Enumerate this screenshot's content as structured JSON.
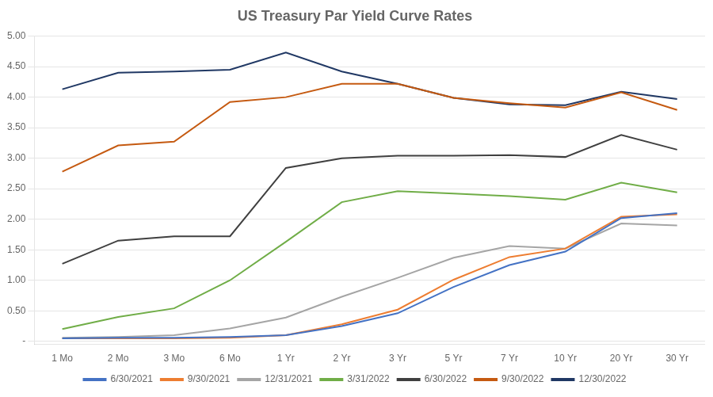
{
  "chart_data": {
    "type": "line",
    "title": "US Treasury Par Yield Curve Rates",
    "categories": [
      "1 Mo",
      "2 Mo",
      "3 Mo",
      "6 Mo",
      "1 Yr",
      "2 Yr",
      "3 Yr",
      "5 Yr",
      "7 Yr",
      "10 Yr",
      "20 Yr",
      "30 Yr"
    ],
    "series": [
      {
        "name": "6/30/2021",
        "color": "#4472C4",
        "values": [
          0.05,
          0.06,
          0.06,
          0.07,
          0.1,
          0.25,
          0.46,
          0.89,
          1.25,
          1.47,
          2.02,
          2.1
        ]
      },
      {
        "name": "9/30/2021",
        "color": "#ED7D31",
        "values": [
          0.05,
          0.05,
          0.05,
          0.06,
          0.1,
          0.28,
          0.52,
          1.01,
          1.38,
          1.52,
          2.04,
          2.08
        ]
      },
      {
        "name": "12/31/2021",
        "color": "#A5A5A5",
        "values": [
          0.06,
          0.07,
          0.1,
          0.21,
          0.39,
          0.73,
          1.04,
          1.37,
          1.56,
          1.52,
          1.93,
          1.9
        ]
      },
      {
        "name": "3/31/2022",
        "color": "#70AD47",
        "values": [
          0.2,
          0.4,
          0.54,
          1.0,
          1.63,
          2.28,
          2.46,
          2.42,
          2.38,
          2.32,
          2.6,
          2.44
        ]
      },
      {
        "name": "6/30/2022",
        "color": "#404040",
        "values": [
          1.27,
          1.65,
          1.72,
          1.72,
          2.84,
          3.0,
          3.04,
          3.04,
          3.05,
          3.02,
          3.38,
          3.14
        ]
      },
      {
        "name": "9/30/2022",
        "color": "#C55A11",
        "values": [
          2.78,
          3.21,
          3.27,
          3.92,
          4.0,
          4.22,
          4.22,
          3.99,
          3.9,
          3.83,
          4.08,
          3.79
        ]
      },
      {
        "name": "12/30/2022",
        "color": "#203864",
        "values": [
          4.13,
          4.4,
          4.42,
          4.45,
          4.73,
          4.42,
          4.22,
          3.99,
          3.88,
          3.87,
          4.09,
          3.97
        ]
      }
    ],
    "ylim": [
      -0.05,
      5.0
    ],
    "yticks": [
      {
        "value": 0.0,
        "label": "-"
      },
      {
        "value": 0.5,
        "label": "0.50"
      },
      {
        "value": 1.0,
        "label": "1.00"
      },
      {
        "value": 1.5,
        "label": "1.50"
      },
      {
        "value": 2.0,
        "label": "2.00"
      },
      {
        "value": 2.5,
        "label": "2.50"
      },
      {
        "value": 3.0,
        "label": "3.00"
      },
      {
        "value": 3.5,
        "label": "3.50"
      },
      {
        "value": 4.0,
        "label": "4.00"
      },
      {
        "value": 4.5,
        "label": "4.50"
      },
      {
        "value": 5.0,
        "label": "5.00"
      }
    ],
    "grid": "y",
    "legend": "bottom"
  }
}
